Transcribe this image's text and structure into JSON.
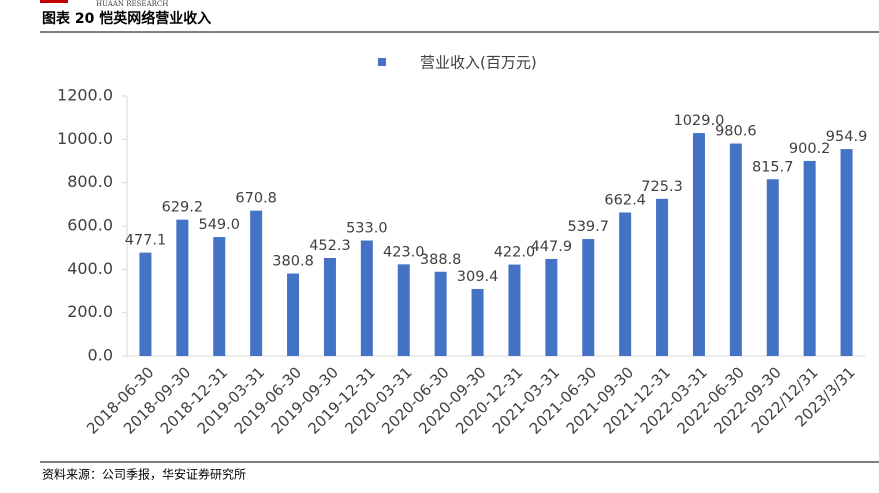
{
  "brand": "HUAAN RESEARCH",
  "heading": "图表 20 恺英网络营业收入",
  "source": "资料来源：公司季报，华安证券研究所",
  "chart_data": {
    "type": "bar",
    "series": [
      {
        "name": "营业收入(百万元)",
        "color": "#4472c4",
        "values": [
          477.1,
          629.2,
          549.0,
          670.8,
          380.8,
          452.3,
          533.0,
          423.0,
          388.8,
          309.4,
          422.0,
          447.9,
          539.7,
          662.4,
          725.3,
          1029.0,
          980.6,
          815.7,
          900.2,
          954.9
        ],
        "value_labels": [
          "477.1",
          "629.2",
          "549.0",
          "670.8",
          "380.8",
          "452.3",
          "533.0",
          "423.0",
          "388.8",
          "309.4",
          "422.0",
          "447.9",
          "539.7",
          "662.4",
          "725.3",
          "1029.0",
          "980.6",
          "815.7",
          "900.2",
          "954.9"
        ]
      }
    ],
    "categories": [
      "2018-06-30",
      "2018-09-30",
      "2018-12-31",
      "2019-03-31",
      "2019-06-30",
      "2019-09-30",
      "2019-12-31",
      "2020-03-31",
      "2020-06-30",
      "2020-09-30",
      "2020-12-31",
      "2021-03-31",
      "2021-06-30",
      "2021-09-30",
      "2021-12-31",
      "2022-03-31",
      "2022-06-30",
      "2022-09-30",
      "2022/12/31",
      "2023/3/31"
    ],
    "ylim": [
      0,
      1200
    ],
    "yticks": [
      {
        "value": 0,
        "label": "0.0"
      },
      {
        "value": 200,
        "label": "200.0"
      },
      {
        "value": 400,
        "label": "400.0"
      },
      {
        "value": 600,
        "label": "600.0"
      },
      {
        "value": 800,
        "label": "800.0"
      },
      {
        "value": 1000,
        "label": "1000.0"
      },
      {
        "value": 1200,
        "label": "1200.0"
      }
    ],
    "legend": "top"
  }
}
